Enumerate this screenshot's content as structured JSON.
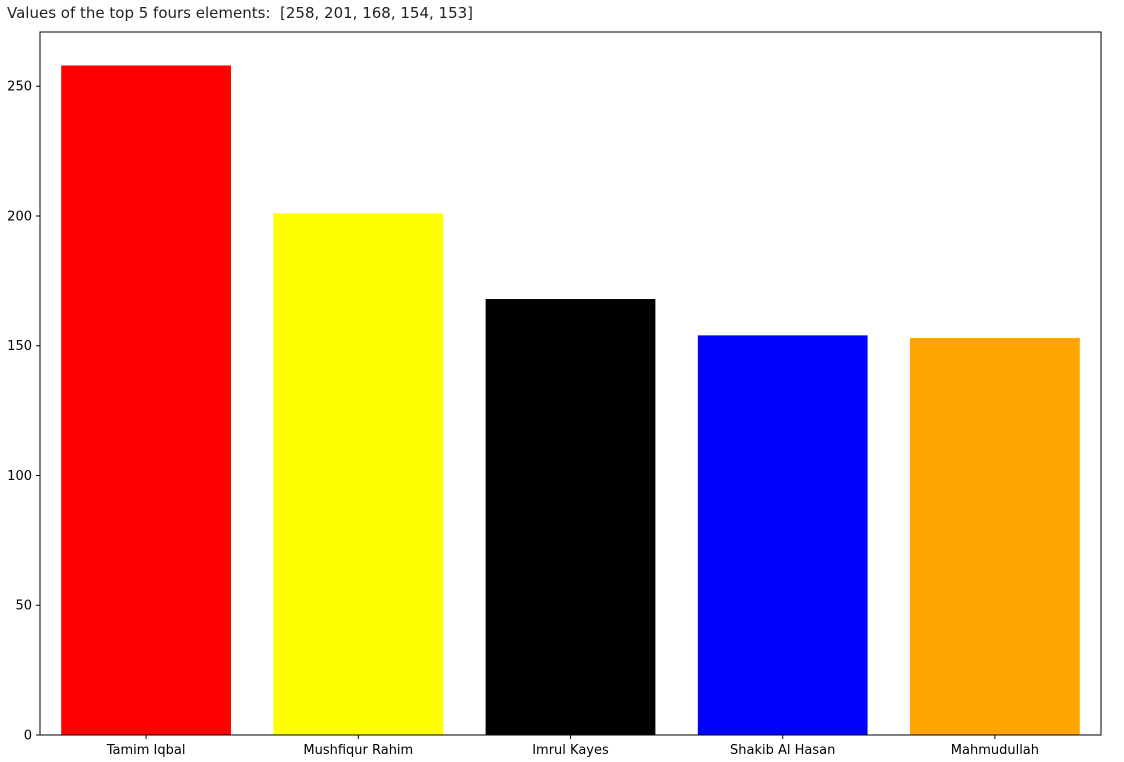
{
  "output": {
    "values_line": "Values of the top 5 fours elements:  [258, 201, 168, 154, 153]"
  },
  "chart_data": {
    "type": "bar",
    "categories": [
      "Tamim Iqbal",
      "Mushfiqur Rahim",
      "Imrul Kayes",
      "Shakib Al Hasan",
      "Mahmudullah"
    ],
    "values": [
      258,
      201,
      168,
      154,
      153
    ],
    "colors": [
      "#ff0000",
      "#ffff00",
      "#000000",
      "#0000ff",
      "#ffa500"
    ],
    "title": "",
    "xlabel": "",
    "ylabel": "",
    "ylim": [
      0,
      270.9
    ],
    "yticks": [
      0,
      50,
      100,
      150,
      200,
      250
    ],
    "grid": false
  }
}
